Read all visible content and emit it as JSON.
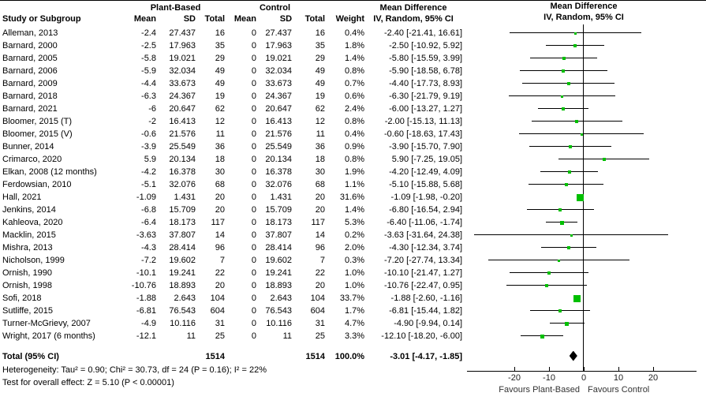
{
  "header": {
    "study_col": "Study or Subgroup",
    "plant_group": "Plant-Based",
    "control_group": "Control",
    "mean": "Mean",
    "sd": "SD",
    "total": "Total",
    "weight": "Weight",
    "md_line1": "Mean Difference",
    "md_line2": "IV, Random, 95% CI"
  },
  "footer": {
    "heterogeneity": "Heterogeneity: Tau² = 0.90; Chi² = 30.73, df = 24 (P = 0.16); I² = 22%",
    "overall_effect": "Test for overall effect: Z = 5.10 (P < 0.00001)"
  },
  "colors": {
    "marker_green": "#00bf00",
    "diamond_black": "#000000",
    "line_black": "#000000"
  },
  "chart_data": {
    "type": "forest",
    "title": "Mean Difference, IV, Random, 95% CI",
    "md_header": [
      "Mean Difference",
      "IV, Random, 95% CI"
    ],
    "x_ticks": [
      -20,
      -10,
      0,
      10,
      20
    ],
    "x_tick_labels": [
      "-20",
      "-10",
      "0",
      "10",
      "20"
    ],
    "xlim": [
      -34,
      33
    ],
    "favours_left": "Favours Plant-Based",
    "favours_right": "Favours Control",
    "studies": [
      {
        "name": "Alleman, 2013",
        "pb_mean": "-2.4",
        "pb_sd": "27.437",
        "pb_total": "16",
        "c_mean": "0",
        "c_sd": "27.437",
        "c_total": "16",
        "weight": "0.4%",
        "ci_text": "-2.40 [-21.41, 16.61]",
        "md": -2.4,
        "lo": -21.41,
        "hi": 16.61,
        "w": 0.4
      },
      {
        "name": "Barnard, 2000",
        "pb_mean": "-2.5",
        "pb_sd": "17.963",
        "pb_total": "35",
        "c_mean": "0",
        "c_sd": "17.963",
        "c_total": "35",
        "weight": "1.8%",
        "ci_text": "-2.50 [-10.92, 5.92]",
        "md": -2.5,
        "lo": -10.92,
        "hi": 5.92,
        "w": 1.8
      },
      {
        "name": "Barnard, 2005",
        "pb_mean": "-5.8",
        "pb_sd": "19.021",
        "pb_total": "29",
        "c_mean": "0",
        "c_sd": "19.021",
        "c_total": "29",
        "weight": "1.4%",
        "ci_text": "-5.80 [-15.59, 3.99]",
        "md": -5.8,
        "lo": -15.59,
        "hi": 3.99,
        "w": 1.4
      },
      {
        "name": "Barnard, 2006",
        "pb_mean": "-5.9",
        "pb_sd": "32.034",
        "pb_total": "49",
        "c_mean": "0",
        "c_sd": "32.034",
        "c_total": "49",
        "weight": "0.8%",
        "ci_text": "-5.90 [-18.58, 6.78]",
        "md": -5.9,
        "lo": -18.58,
        "hi": 6.78,
        "w": 0.8
      },
      {
        "name": "Barnard, 2009",
        "pb_mean": "-4.4",
        "pb_sd": "33.673",
        "pb_total": "49",
        "c_mean": "0",
        "c_sd": "33.673",
        "c_total": "49",
        "weight": "0.7%",
        "ci_text": "-4.40 [-17.73, 8.93]",
        "md": -4.4,
        "lo": -17.73,
        "hi": 8.93,
        "w": 0.7
      },
      {
        "name": "Barnard, 2018",
        "pb_mean": "-6.3",
        "pb_sd": "24.367",
        "pb_total": "19",
        "c_mean": "0",
        "c_sd": "24.367",
        "c_total": "19",
        "weight": "0.6%",
        "ci_text": "-6.30 [-21.79, 9.19]",
        "md": -6.3,
        "lo": -21.79,
        "hi": 9.19,
        "w": 0.6
      },
      {
        "name": "Barnard, 2021",
        "pb_mean": "-6",
        "pb_sd": "20.647",
        "pb_total": "62",
        "c_mean": "0",
        "c_sd": "20.647",
        "c_total": "62",
        "weight": "2.4%",
        "ci_text": "-6.00 [-13.27, 1.27]",
        "md": -6.0,
        "lo": -13.27,
        "hi": 1.27,
        "w": 2.4
      },
      {
        "name": "Bloomer, 2015 (T)",
        "pb_mean": "-2",
        "pb_sd": "16.413",
        "pb_total": "12",
        "c_mean": "0",
        "c_sd": "16.413",
        "c_total": "12",
        "weight": "0.8%",
        "ci_text": "-2.00 [-15.13, 11.13]",
        "md": -2.0,
        "lo": -15.13,
        "hi": 11.13,
        "w": 0.8
      },
      {
        "name": "Bloomer, 2015 (V)",
        "pb_mean": "-0.6",
        "pb_sd": "21.576",
        "pb_total": "11",
        "c_mean": "0",
        "c_sd": "21.576",
        "c_total": "11",
        "weight": "0.4%",
        "ci_text": "-0.60 [-18.63, 17.43]",
        "md": -0.6,
        "lo": -18.63,
        "hi": 17.43,
        "w": 0.4
      },
      {
        "name": "Bunner, 2014",
        "pb_mean": "-3.9",
        "pb_sd": "25.549",
        "pb_total": "36",
        "c_mean": "0",
        "c_sd": "25.549",
        "c_total": "36",
        "weight": "0.9%",
        "ci_text": "-3.90 [-15.70, 7.90]",
        "md": -3.9,
        "lo": -15.7,
        "hi": 7.9,
        "w": 0.9
      },
      {
        "name": "Crimarco, 2020",
        "pb_mean": "5.9",
        "pb_sd": "20.134",
        "pb_total": "18",
        "c_mean": "0",
        "c_sd": "20.134",
        "c_total": "18",
        "weight": "0.8%",
        "ci_text": "5.90 [-7.25, 19.05]",
        "md": 5.9,
        "lo": -7.25,
        "hi": 19.05,
        "w": 0.8
      },
      {
        "name": "Elkan, 2008 (12 months)",
        "pb_mean": "-4.2",
        "pb_sd": "16.378",
        "pb_total": "30",
        "c_mean": "0",
        "c_sd": "16.378",
        "c_total": "30",
        "weight": "1.9%",
        "ci_text": "-4.20 [-12.49, 4.09]",
        "md": -4.2,
        "lo": -12.49,
        "hi": 4.09,
        "w": 1.9
      },
      {
        "name": "Ferdowsian, 2010",
        "pb_mean": "-5.1",
        "pb_sd": "32.076",
        "pb_total": "68",
        "c_mean": "0",
        "c_sd": "32.076",
        "c_total": "68",
        "weight": "1.1%",
        "ci_text": "-5.10 [-15.88, 5.68]",
        "md": -5.1,
        "lo": -15.88,
        "hi": 5.68,
        "w": 1.1
      },
      {
        "name": "Hall, 2021",
        "pb_mean": "-1.09",
        "pb_sd": "1.431",
        "pb_total": "20",
        "c_mean": "0",
        "c_sd": "1.431",
        "c_total": "20",
        "weight": "31.6%",
        "ci_text": "-1.09 [-1.98, -0.20]",
        "md": -1.09,
        "lo": -1.98,
        "hi": -0.2,
        "w": 31.6
      },
      {
        "name": "Jenkins, 2014",
        "pb_mean": "-6.8",
        "pb_sd": "15.709",
        "pb_total": "20",
        "c_mean": "0",
        "c_sd": "15.709",
        "c_total": "20",
        "weight": "1.4%",
        "ci_text": "-6.80 [-16.54, 2.94]",
        "md": -6.8,
        "lo": -16.54,
        "hi": 2.94,
        "w": 1.4
      },
      {
        "name": "Kahleova, 2020",
        "pb_mean": "-6.4",
        "pb_sd": "18.173",
        "pb_total": "117",
        "c_mean": "0",
        "c_sd": "18.173",
        "c_total": "117",
        "weight": "5.3%",
        "ci_text": "-6.40 [-11.06, -1.74]",
        "md": -6.4,
        "lo": -11.06,
        "hi": -1.74,
        "w": 5.3
      },
      {
        "name": "Macklin, 2015",
        "pb_mean": "-3.63",
        "pb_sd": "37.807",
        "pb_total": "14",
        "c_mean": "0",
        "c_sd": "37.807",
        "c_total": "14",
        "weight": "0.2%",
        "ci_text": "-3.63 [-31.64, 24.38]",
        "md": -3.63,
        "lo": -31.64,
        "hi": 24.38,
        "w": 0.2
      },
      {
        "name": "Mishra, 2013",
        "pb_mean": "-4.3",
        "pb_sd": "28.414",
        "pb_total": "96",
        "c_mean": "0",
        "c_sd": "28.414",
        "c_total": "96",
        "weight": "2.0%",
        "ci_text": "-4.30 [-12.34, 3.74]",
        "md": -4.3,
        "lo": -12.34,
        "hi": 3.74,
        "w": 2.0
      },
      {
        "name": "Nicholson, 1999",
        "pb_mean": "-7.2",
        "pb_sd": "19.602",
        "pb_total": "7",
        "c_mean": "0",
        "c_sd": "19.602",
        "c_total": "7",
        "weight": "0.3%",
        "ci_text": "-7.20 [-27.74, 13.34]",
        "md": -7.2,
        "lo": -27.74,
        "hi": 13.34,
        "w": 0.3
      },
      {
        "name": "Ornish, 1990",
        "pb_mean": "-10.1",
        "pb_sd": "19.241",
        "pb_total": "22",
        "c_mean": "0",
        "c_sd": "19.241",
        "c_total": "22",
        "weight": "1.0%",
        "ci_text": "-10.10 [-21.47, 1.27]",
        "md": -10.1,
        "lo": -21.47,
        "hi": 1.27,
        "w": 1.0
      },
      {
        "name": "Ornish, 1998",
        "pb_mean": "-10.76",
        "pb_sd": "18.893",
        "pb_total": "20",
        "c_mean": "0",
        "c_sd": "18.893",
        "c_total": "20",
        "weight": "1.0%",
        "ci_text": "-10.76 [-22.47, 0.95]",
        "md": -10.76,
        "lo": -22.47,
        "hi": 0.95,
        "w": 1.0
      },
      {
        "name": "Sofi, 2018",
        "pb_mean": "-1.88",
        "pb_sd": "2.643",
        "pb_total": "104",
        "c_mean": "0",
        "c_sd": "2.643",
        "c_total": "104",
        "weight": "33.7%",
        "ci_text": "-1.88 [-2.60, -1.16]",
        "md": -1.88,
        "lo": -2.6,
        "hi": -1.16,
        "w": 33.7
      },
      {
        "name": "Sutliffe, 2015",
        "pb_mean": "-6.81",
        "pb_sd": "76.543",
        "pb_total": "604",
        "c_mean": "0",
        "c_sd": "76.543",
        "c_total": "604",
        "weight": "1.7%",
        "ci_text": "-6.81 [-15.44, 1.82]",
        "md": -6.81,
        "lo": -15.44,
        "hi": 1.82,
        "w": 1.7
      },
      {
        "name": "Turner-McGrievy, 2007",
        "pb_mean": "-4.9",
        "pb_sd": "10.116",
        "pb_total": "31",
        "c_mean": "0",
        "c_sd": "10.116",
        "c_total": "31",
        "weight": "4.7%",
        "ci_text": "-4.90 [-9.94, 0.14]",
        "md": -4.9,
        "lo": -9.94,
        "hi": 0.14,
        "w": 4.7
      },
      {
        "name": "Wright, 2017 (6 months)",
        "pb_mean": "-12.1",
        "pb_sd": "11",
        "pb_total": "25",
        "c_mean": "0",
        "c_sd": "11",
        "c_total": "25",
        "weight": "3.3%",
        "ci_text": "-12.10 [-18.20, -6.00]",
        "md": -12.1,
        "lo": -18.2,
        "hi": -6.0,
        "w": 3.3
      }
    ],
    "total": {
      "label": "Total (95% CI)",
      "pb_total": "1514",
      "c_total": "1514",
      "weight": "100.0%",
      "ci_text": "-3.01 [-4.17, -1.85]",
      "md": -3.01,
      "lo": -4.17,
      "hi": -1.85
    }
  }
}
